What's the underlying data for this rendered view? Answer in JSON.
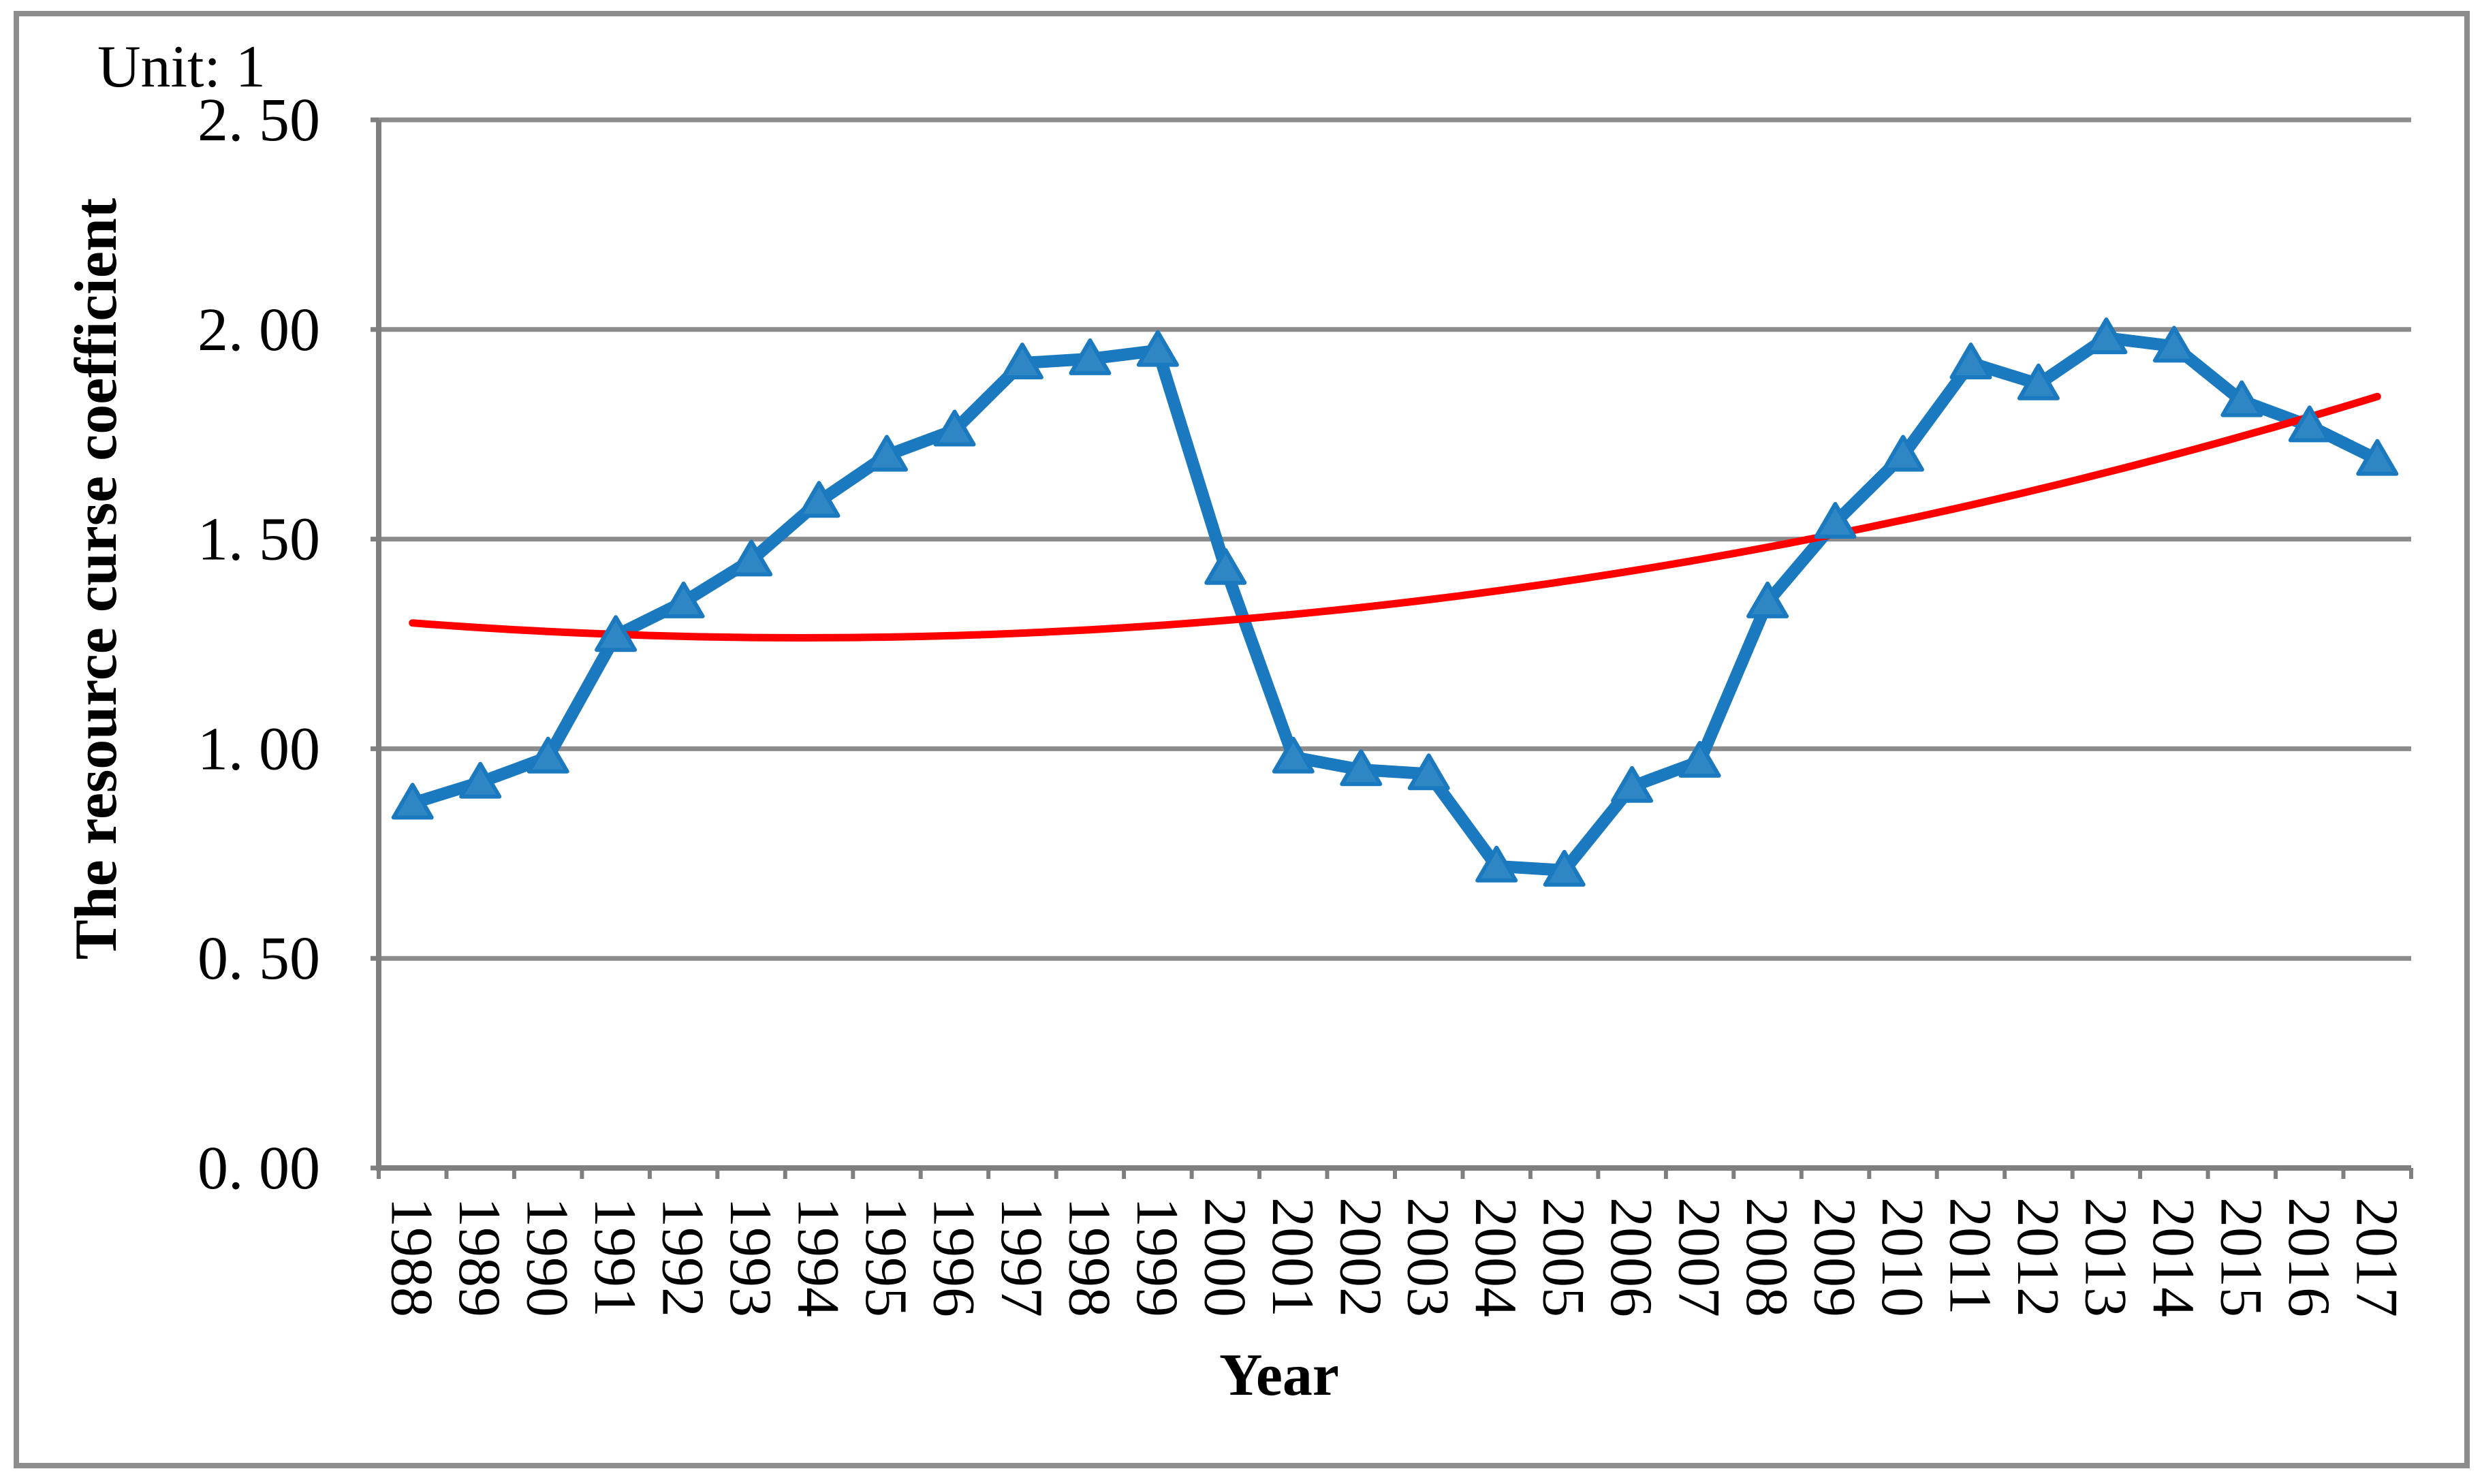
{
  "figure": {
    "unit_label": "Unit: 1",
    "background": "#FFFFFF",
    "border_color": "#8C8C8C"
  },
  "chart_data": {
    "type": "line",
    "title": "",
    "xlabel": "Year",
    "ylabel": "The resource curse coefficient",
    "x": [
      "1988",
      "1989",
      "1990",
      "1991",
      "1992",
      "1993",
      "1994",
      "1995",
      "1996",
      "1997",
      "1998",
      "1999",
      "2000",
      "2001",
      "2002",
      "2003",
      "2004",
      "2005",
      "2006",
      "2007",
      "2008",
      "2009",
      "2010",
      "2011",
      "2012",
      "2013",
      "2014",
      "2015",
      "2016",
      "2017"
    ],
    "series": [
      {
        "name": "The resource curse coefficient",
        "color": "#1B7ABF",
        "marker": "triangle",
        "marker_fill": "#2E86C4",
        "values": [
          0.87,
          0.92,
          0.98,
          1.27,
          1.35,
          1.45,
          1.59,
          1.7,
          1.76,
          1.92,
          1.93,
          1.95,
          1.43,
          0.98,
          0.95,
          0.94,
          0.72,
          0.71,
          0.91,
          0.97,
          1.35,
          1.54,
          1.7,
          1.92,
          1.87,
          1.98,
          1.96,
          1.83,
          1.77,
          1.69
        ]
      }
    ],
    "trendline": {
      "name": "polynomial-trend",
      "type": "polynomial",
      "order": 2,
      "color": "#FF0000",
      "poly_coeffs": {
        "a": 0.0010652,
        "b": -0.012271,
        "c": 1.3
      },
      "start_value": 1.3,
      "min_value": 1.26,
      "end_value": 1.84
    },
    "y_axis": {
      "min": 0.0,
      "max": 2.5,
      "step": 0.5,
      "tick_labels": [
        "0. 00",
        "0. 50",
        "1. 00",
        "1. 50",
        "2. 00",
        "2. 50"
      ]
    },
    "grid": true,
    "grid_color": "#8C8C8C",
    "axis_color": "#7F7F7F",
    "legend": false
  }
}
